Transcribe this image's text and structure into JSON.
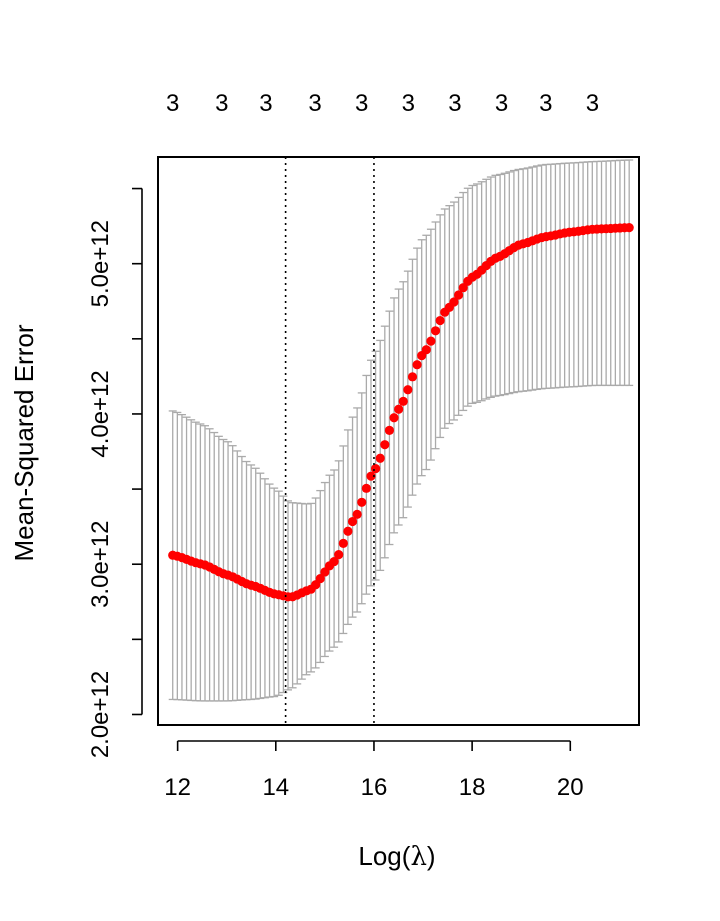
{
  "chart_data": {
    "type": "scatter",
    "xlabel": "Log(",
    "xlabel_symbol": "λ",
    "xlabel_close": ")",
    "ylabel": "Mean-Squared Error",
    "xlim": [
      11.6,
      21.4
    ],
    "ylim": [
      1930000000000.0,
      5710000000000.0
    ],
    "x_ticks": [
      12,
      14,
      16,
      18,
      20
    ],
    "x_tick_labels": [
      "12",
      "14",
      "16",
      "18",
      "20"
    ],
    "y_ticks": [
      2000000000000.0,
      2500000000000.0,
      3000000000000.0,
      3500000000000.0,
      4000000000000.0,
      4500000000000.0,
      5000000000000.0,
      5500000000000.0
    ],
    "y_tick_labels": [
      "2.0e+12",
      "",
      "3.0e+12",
      "",
      "4.0e+12",
      "",
      "5.0e+12",
      ""
    ],
    "top_labels": [
      "3",
      "3",
      "3",
      "3",
      "3",
      "3",
      "3",
      "3",
      "3",
      "3"
    ],
    "top_label_positions": [
      11.9,
      12.9,
      13.8,
      14.8,
      15.75,
      16.7,
      17.65,
      18.6,
      19.5,
      20.45
    ],
    "vlines": [
      14.2,
      16.0
    ],
    "grid": false,
    "colors": {
      "points": "#ff0000",
      "errorbars": "#aaaaaa",
      "vlines": "#000000",
      "axes": "#000000"
    },
    "n_points": 100,
    "x_range": [
      11.9,
      21.2
    ],
    "series": [
      {
        "name": "",
        "x_knots": [
          11.9,
          12.5,
          13.0,
          13.5,
          14.0,
          14.3,
          14.7,
          15.2,
          15.6,
          16.0,
          16.5,
          17.0,
          17.5,
          18.0,
          18.5,
          19.0,
          19.5,
          20.0,
          20.5,
          21.2
        ],
        "y_knots": [
          3060000000000.0,
          3000000000000.0,
          2930000000000.0,
          2860000000000.0,
          2800000000000.0,
          2780000000000.0,
          2830000000000.0,
          3020000000000.0,
          3300000000000.0,
          3620000000000.0,
          4030000000000.0,
          4400000000000.0,
          4700000000000.0,
          4910000000000.0,
          5040000000000.0,
          5130000000000.0,
          5180000000000.0,
          5210000000000.0,
          5230000000000.0,
          5240000000000.0
        ],
        "upper_knots": [
          4020000000000.0,
          3930000000000.0,
          3820000000000.0,
          3660000000000.0,
          3500000000000.0,
          3410000000000.0,
          3400000000000.0,
          3630000000000.0,
          4000000000000.0,
          4400000000000.0,
          4830000000000.0,
          5170000000000.0,
          5380000000000.0,
          5520000000000.0,
          5590000000000.0,
          5630000000000.0,
          5660000000000.0,
          5670000000000.0,
          5680000000000.0,
          5690000000000.0
        ],
        "lower_knots": [
          2100000000000.0,
          2090000000000.0,
          2090000000000.0,
          2100000000000.0,
          2120000000000.0,
          2170000000000.0,
          2280000000000.0,
          2450000000000.0,
          2660000000000.0,
          2880000000000.0,
          3260000000000.0,
          3600000000000.0,
          3930000000000.0,
          4070000000000.0,
          4120000000000.0,
          4150000000000.0,
          4170000000000.0,
          4180000000000.0,
          4190000000000.0,
          4190000000000.0
        ]
      }
    ]
  }
}
